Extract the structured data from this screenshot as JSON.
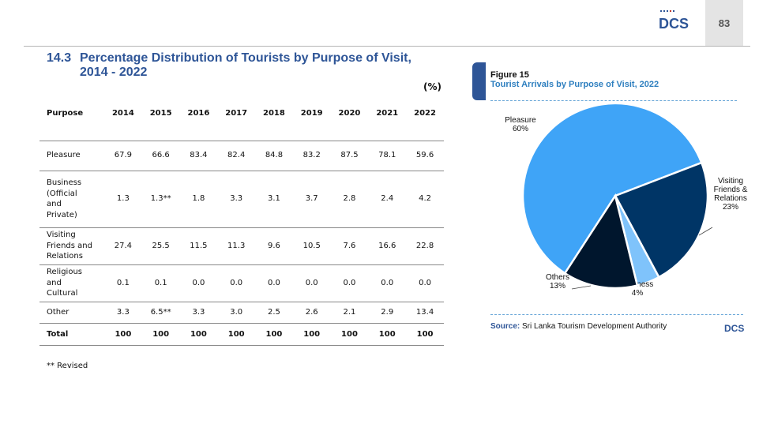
{
  "header": {
    "page_number": "83",
    "logo_text": "DCS"
  },
  "section": {
    "number": "14.3",
    "title_line1": "Percentage Distribution of Tourists by Purpose of Visit,",
    "title_line2": "2014 - 2022",
    "unit": "(%)"
  },
  "table": {
    "headers": [
      "Purpose",
      "2014",
      "2015",
      "2016",
      "2017",
      "2018",
      "2019",
      "2020",
      "2021",
      "2022"
    ],
    "rows": [
      {
        "purpose_lines": [
          "Pleasure"
        ],
        "values": [
          "67.9",
          "66.6",
          "83.4",
          "82.4",
          "84.8",
          "83.2",
          "87.5",
          "78.1",
          "59.6"
        ]
      },
      {
        "purpose_lines": [
          "Business",
          "(Official",
          "and",
          "Private)"
        ],
        "values": [
          "1.3",
          "1.3**",
          "1.8",
          "3.3",
          "3.1",
          "3.7",
          "2.8",
          "2.4",
          "4.2"
        ]
      },
      {
        "purpose_lines": [
          "Visiting",
          "Friends and",
          "Relations"
        ],
        "values": [
          "27.4",
          "25.5",
          "11.5",
          "11.3",
          "9.6",
          "10.5",
          "7.6",
          "16.6",
          "22.8"
        ]
      },
      {
        "purpose_lines": [
          "Religious",
          "and",
          "Cultural"
        ],
        "values": [
          "0.1",
          "0.1",
          "0.0",
          "0.0",
          "0.0",
          "0.0",
          "0.0",
          "0.0",
          "0.0"
        ]
      },
      {
        "purpose_lines": [
          "Other"
        ],
        "values": [
          "3.3",
          "6.5**",
          "3.3",
          "3.0",
          "2.5",
          "2.6",
          "2.1",
          "2.9",
          "13.4"
        ]
      },
      {
        "purpose_lines": [
          "Total"
        ],
        "values": [
          "100",
          "100",
          "100",
          "100",
          "100",
          "100",
          "100",
          "100",
          "100"
        ],
        "bold": true
      }
    ],
    "footnote": "** Revised"
  },
  "figure": {
    "label": "Figure 15",
    "title": "Tourist Arrivals by Purpose of Visit, 2022",
    "source_label": "Source:",
    "source_text": "Sri Lanka Tourism Development Authority"
  },
  "chart_data": {
    "type": "pie",
    "title": "Tourist Arrivals by Purpose of Visit, 2022",
    "slices": [
      {
        "label": "Pleasure",
        "label_lines": [
          "Pleasure"
        ],
        "value": 60,
        "pct_text": "60%",
        "color": "#3fa4f7"
      },
      {
        "label": "Visiting Friends & Relations",
        "label_lines": [
          "Visiting",
          "Friends &",
          "Relations"
        ],
        "value": 23,
        "pct_text": "23%",
        "color": "#003566"
      },
      {
        "label": "Business",
        "label_lines": [
          "Business"
        ],
        "value": 4,
        "pct_text": "4%",
        "color": "#7fc3fb"
      },
      {
        "label": "Others",
        "label_lines": [
          "Others"
        ],
        "value": 13,
        "pct_text": "13%",
        "color": "#00162d"
      }
    ]
  }
}
